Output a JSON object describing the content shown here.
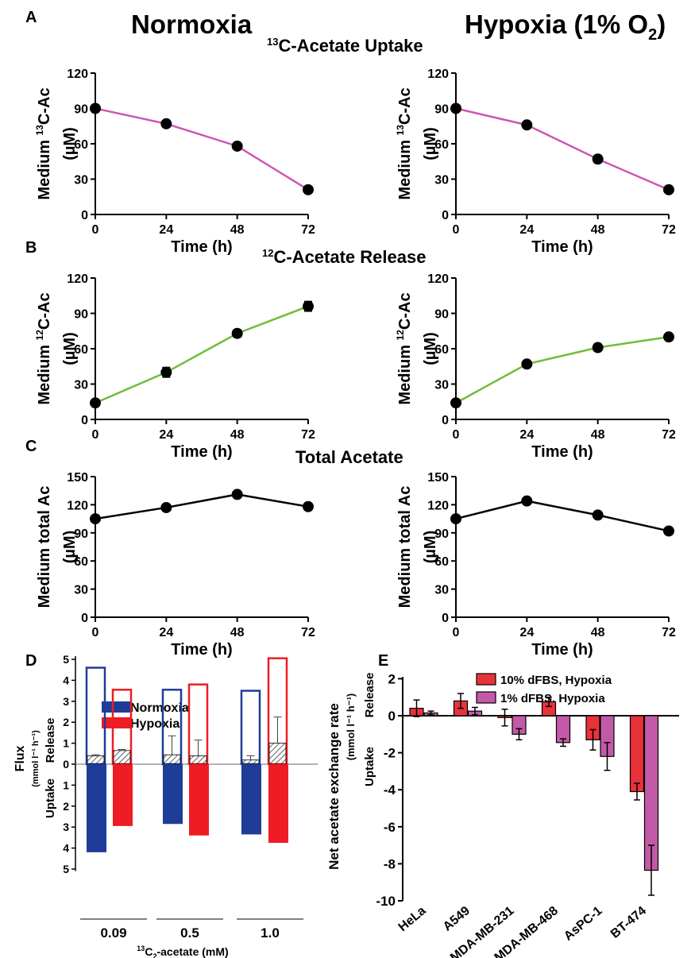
{
  "headers": {
    "normoxia": "Normoxia",
    "hypoxia": "Hypoxia (1% O",
    "hypoxia_sub": "2",
    "hypoxia_close": ")"
  },
  "panel_letters": [
    "A",
    "B",
    "C",
    "D",
    "E"
  ],
  "section_titles": {
    "a_pre": "13",
    "a_main": "C-Acetate Uptake",
    "b_pre": "12",
    "b_main": "C-Acetate Release",
    "c_main": "Total Acetate"
  },
  "colors": {
    "uptake_line": "#cc55b4",
    "release_line": "#6fbd3b",
    "total_line": "#000000",
    "normoxia": "#1f3c98",
    "hypoxia": "#ee1c24",
    "e_red": "#e8323a",
    "e_pink": "#c35aa7"
  },
  "chart_data": [
    {
      "id": "A-normoxia",
      "type": "line",
      "panel": "A",
      "condition": "Normoxia",
      "x": [
        0,
        24,
        48,
        72
      ],
      "y": [
        90,
        77,
        58,
        21
      ],
      "yerr": [
        0,
        2,
        2,
        0
      ],
      "xticks": [
        "0",
        "24",
        "48",
        "72"
      ],
      "yticks": [
        "0",
        "30",
        "60",
        "90",
        "120"
      ],
      "ylim": [
        0,
        120
      ],
      "xlabel": "Time (h)",
      "ylabel_pre": "Medium ",
      "ylabel_sup": "13",
      "ylabel_post": "C-Ac",
      "ylabel_unit": "(µM)"
    },
    {
      "id": "A-hypoxia",
      "type": "line",
      "panel": "A",
      "condition": "Hypoxia (1% O2)",
      "x": [
        0,
        24,
        48,
        72
      ],
      "y": [
        90,
        76,
        47,
        21
      ],
      "yerr": [
        0,
        2,
        3,
        0
      ],
      "xticks": [
        "0",
        "24",
        "48",
        "72"
      ],
      "yticks": [
        "0",
        "30",
        "60",
        "90",
        "120"
      ],
      "ylim": [
        0,
        120
      ],
      "xlabel": "Time (h)",
      "ylabel_pre": "Medium ",
      "ylabel_sup": "13",
      "ylabel_post": "C-Ac",
      "ylabel_unit": "(µM)"
    },
    {
      "id": "B-normoxia",
      "type": "line",
      "panel": "B",
      "condition": "Normoxia",
      "x": [
        0,
        24,
        48,
        72
      ],
      "y": [
        14,
        40,
        73,
        96
      ],
      "yerr": [
        0,
        4,
        3,
        4
      ],
      "xticks": [
        "0",
        "24",
        "48",
        "72"
      ],
      "yticks": [
        "0",
        "30",
        "60",
        "90",
        "120"
      ],
      "ylim": [
        0,
        120
      ],
      "xlabel": "Time (h)",
      "ylabel_pre": "Medium ",
      "ylabel_sup": "12",
      "ylabel_post": "C-Ac",
      "ylabel_unit": "(µM)"
    },
    {
      "id": "B-hypoxia",
      "type": "line",
      "panel": "B",
      "condition": "Hypoxia (1% O2)",
      "x": [
        0,
        24,
        48,
        72
      ],
      "y": [
        14,
        47,
        61,
        70
      ],
      "yerr": [
        0,
        1,
        1,
        1
      ],
      "xticks": [
        "0",
        "24",
        "48",
        "72"
      ],
      "yticks": [
        "0",
        "30",
        "60",
        "90",
        "120"
      ],
      "ylim": [
        0,
        120
      ],
      "xlabel": "Time (h)",
      "ylabel_pre": "Medium ",
      "ylabel_sup": "12",
      "ylabel_post": "C-Ac",
      "ylabel_unit": "(µM)"
    },
    {
      "id": "C-normoxia",
      "type": "line",
      "panel": "C",
      "condition": "Normoxia",
      "x": [
        0,
        24,
        48,
        72
      ],
      "y": [
        105,
        117,
        131,
        118
      ],
      "yerr": [
        0,
        0,
        0,
        0
      ],
      "xticks": [
        "0",
        "24",
        "48",
        "72"
      ],
      "yticks": [
        "0",
        "30",
        "60",
        "90",
        "120",
        "150"
      ],
      "ylim": [
        0,
        150
      ],
      "xlabel": "Time (h)",
      "ylabel_pre": "Medium total Ac",
      "ylabel_sup": "",
      "ylabel_post": "",
      "ylabel_unit": "(µM)"
    },
    {
      "id": "C-hypoxia",
      "type": "line",
      "panel": "C",
      "condition": "Hypoxia (1% O2)",
      "x": [
        0,
        24,
        48,
        72
      ],
      "y": [
        105,
        124,
        109,
        92
      ],
      "yerr": [
        0,
        0,
        0,
        0
      ],
      "xticks": [
        "0",
        "24",
        "48",
        "72"
      ],
      "yticks": [
        "0",
        "30",
        "60",
        "90",
        "120",
        "150"
      ],
      "ylim": [
        0,
        150
      ],
      "xlabel": "Time (h)",
      "ylabel_pre": "Medium total Ac",
      "ylabel_sup": "",
      "ylabel_post": "",
      "ylabel_unit": "(µM)"
    },
    {
      "id": "D",
      "type": "bar",
      "panel": "D",
      "categories": [
        "0.09",
        "0.5",
        "1.0"
      ],
      "xlabel_pre": "13",
      "xlabel_mid": "C",
      "xlabel_sub": "2",
      "xlabel_post": "-acetate (mM)",
      "ylabel": "Flux",
      "ylabel_unit": "(mmol l⁻¹ h⁻¹)",
      "release_label": "Release",
      "uptake_label": "Uptake",
      "yticks_up": [
        "5",
        "4",
        "3",
        "2",
        "1",
        "0"
      ],
      "yticks_down": [
        "1",
        "2",
        "3",
        "4",
        "5"
      ],
      "ylim": [
        -5,
        5
      ],
      "legend": [
        "Normoxia",
        "Hypoxia"
      ],
      "series": [
        {
          "name": "Normoxia",
          "release": [
            4.6,
            3.55,
            3.5
          ],
          "net_release": [
            0.4,
            0.45,
            0.2
          ],
          "net_err": [
            0.05,
            0.9,
            0.2
          ],
          "uptake": [
            4.2,
            2.85,
            3.35
          ]
        },
        {
          "name": "Hypoxia",
          "release": [
            3.55,
            3.8,
            5.05
          ],
          "net_release": [
            0.65,
            0.4,
            1.0
          ],
          "net_err": [
            0.05,
            0.75,
            1.25
          ],
          "uptake": [
            2.95,
            3.4,
            3.75
          ]
        }
      ]
    },
    {
      "id": "E",
      "type": "bar",
      "panel": "E",
      "categories": [
        "HeLa",
        "A549",
        "MDA-MB-231",
        "MDA-MB-468",
        "AsPC-1",
        "BT-474"
      ],
      "ylabel": "Net acetate exchange rate",
      "ylabel_unit": "(mmol l⁻¹ h⁻¹)",
      "release_label": "Release",
      "uptake_label": "Uptake",
      "yticks": [
        "2",
        "0",
        "-2",
        "-4",
        "-6",
        "-8",
        "-10"
      ],
      "ylim": [
        -10,
        2
      ],
      "series": [
        {
          "name": "10% dFBS, Hypoxia",
          "values": [
            0.4,
            0.8,
            -0.1,
            0.75,
            -1.3,
            -4.1
          ],
          "err": [
            0.45,
            0.4,
            0.45,
            0.25,
            0.55,
            0.45
          ]
        },
        {
          "name": "1% dFBS, Hypoxia",
          "values": [
            0.15,
            0.25,
            -1.0,
            -1.45,
            -2.2,
            -8.35
          ],
          "err": [
            0.1,
            0.2,
            0.3,
            0.2,
            0.75,
            1.35
          ]
        }
      ]
    }
  ]
}
